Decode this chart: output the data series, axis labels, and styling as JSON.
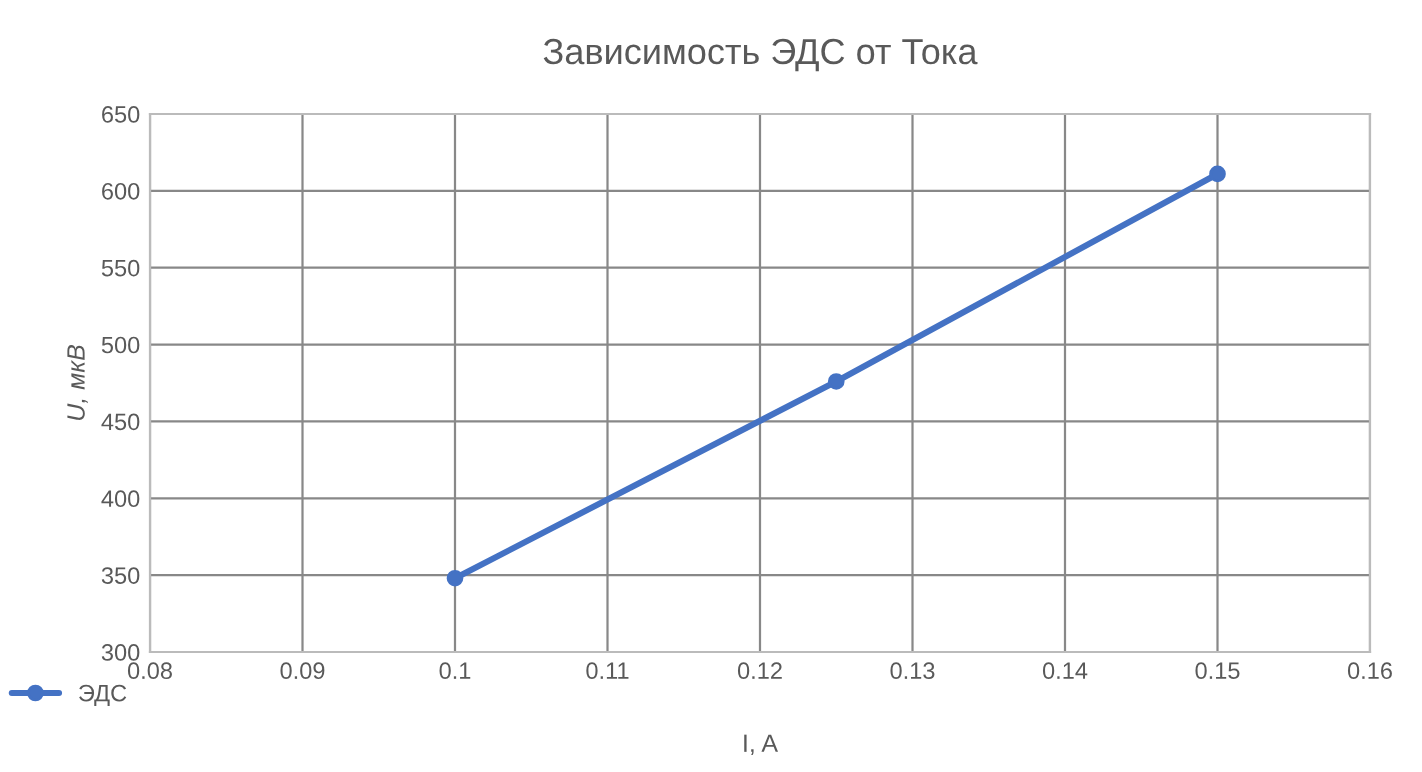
{
  "chart_data": {
    "type": "line",
    "title": "Зависимость ЭДС от Тока",
    "xlabel": "I, A",
    "ylabel": "U, мкВ",
    "x": [
      0.1,
      0.125,
      0.15
    ],
    "series": [
      {
        "name": "ЭДС",
        "color": "#4472c4",
        "values": [
          348,
          476,
          611
        ]
      }
    ],
    "xlim": [
      0.08,
      0.16
    ],
    "xticks": [
      0.08,
      0.09,
      0.1,
      0.11,
      0.12,
      0.13,
      0.14,
      0.15,
      0.16
    ],
    "ylim": [
      300,
      650
    ],
    "yticks": [
      300,
      350,
      400,
      450,
      500,
      550,
      600,
      650
    ],
    "grid": true,
    "legend": "bottom left",
    "marker": "circle",
    "line_style": "solid"
  }
}
